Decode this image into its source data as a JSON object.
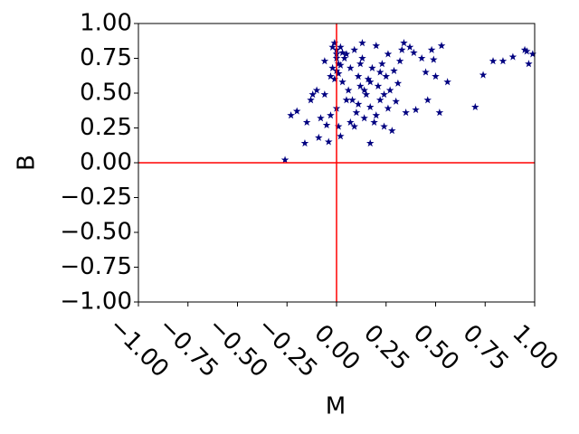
{
  "chart_data": {
    "type": "scatter",
    "xlabel": "M",
    "ylabel": "B",
    "marker": "star",
    "color": "#000080",
    "x": [
      -0.26,
      -0.23,
      -0.2,
      -0.16,
      -0.15,
      -0.13,
      -0.12,
      -0.1,
      -0.09,
      -0.08,
      -0.06,
      -0.06,
      -0.05,
      -0.04,
      -0.03,
      -0.03,
      -0.02,
      -0.02,
      -0.01,
      0.0,
      0.0,
      0.0,
      0.01,
      0.0,
      0.01,
      -0.01,
      0.02,
      0.03,
      0.04,
      0.02,
      0.03,
      0.01,
      0.02,
      0.0,
      0.05,
      0.06,
      0.07,
      0.08,
      0.09,
      0.1,
      0.11,
      0.12,
      0.13,
      0.13,
      0.14,
      0.15,
      0.16,
      0.17,
      0.17,
      0.18,
      0.19,
      0.2,
      0.21,
      0.22,
      0.23,
      0.24,
      0.25,
      0.26,
      0.26,
      0.27,
      0.28,
      0.29,
      0.3,
      0.31,
      0.32,
      0.33,
      0.34,
      0.35,
      0.37,
      0.39,
      0.4,
      0.43,
      0.45,
      0.46,
      0.48,
      0.49,
      0.5,
      0.53,
      0.52,
      0.56,
      0.7,
      0.74,
      0.79,
      0.84,
      0.89,
      0.95,
      0.96,
      0.97,
      0.99,
      0.09,
      0.11,
      0.14,
      0.07,
      0.17,
      0.24,
      0.2,
      0.05,
      0.12,
      0.22
    ],
    "values": [
      0.02,
      0.34,
      0.37,
      0.14,
      0.29,
      0.45,
      0.49,
      0.52,
      0.18,
      0.32,
      0.73,
      0.49,
      0.27,
      0.15,
      0.62,
      0.34,
      0.68,
      0.83,
      0.86,
      0.81,
      0.78,
      0.75,
      0.71,
      0.66,
      0.64,
      0.6,
      0.83,
      0.79,
      0.75,
      0.7,
      0.58,
      0.26,
      0.19,
      0.39,
      0.78,
      0.52,
      0.68,
      0.45,
      0.81,
      0.36,
      0.62,
      0.55,
      0.75,
      0.86,
      0.32,
      0.49,
      0.6,
      0.4,
      0.14,
      0.68,
      0.29,
      0.84,
      0.55,
      0.45,
      0.71,
      0.26,
      0.62,
      0.39,
      0.78,
      0.52,
      0.23,
      0.66,
      0.44,
      0.57,
      0.73,
      0.81,
      0.86,
      0.36,
      0.83,
      0.79,
      0.38,
      0.75,
      0.65,
      0.45,
      0.81,
      0.74,
      0.62,
      0.84,
      0.36,
      0.58,
      0.4,
      0.63,
      0.73,
      0.73,
      0.76,
      0.81,
      0.8,
      0.71,
      0.78,
      0.26,
      0.42,
      0.52,
      0.29,
      0.58,
      0.49,
      0.34,
      0.45,
      0.71,
      0.65
    ],
    "xlim": [
      -1,
      1
    ],
    "ylim": [
      -1,
      1
    ],
    "xticks": [
      {
        "value": -1,
        "label": "−1.00"
      },
      {
        "value": -0.75,
        "label": "−0.75"
      },
      {
        "value": -0.5,
        "label": "−0.50"
      },
      {
        "value": -0.25,
        "label": "−0.25"
      },
      {
        "value": 0,
        "label": "0.00"
      },
      {
        "value": 0.25,
        "label": "0.25"
      },
      {
        "value": 0.5,
        "label": "0.50"
      },
      {
        "value": 0.75,
        "label": "0.75"
      },
      {
        "value": 1,
        "label": "1.00"
      }
    ],
    "yticks": [
      {
        "value": -1,
        "label": "−1.00"
      },
      {
        "value": -0.75,
        "label": "−0.75"
      },
      {
        "value": -0.5,
        "label": "−0.50"
      },
      {
        "value": -0.25,
        "label": "−0.25"
      },
      {
        "value": 0,
        "label": "0.00"
      },
      {
        "value": 0.25,
        "label": "0.25"
      },
      {
        "value": 0.5,
        "label": "0.50"
      },
      {
        "value": 0.75,
        "label": "0.75"
      },
      {
        "value": 1,
        "label": "1.00"
      }
    ],
    "hline": 0,
    "vline": 0,
    "ref_color": "#ff0000"
  }
}
